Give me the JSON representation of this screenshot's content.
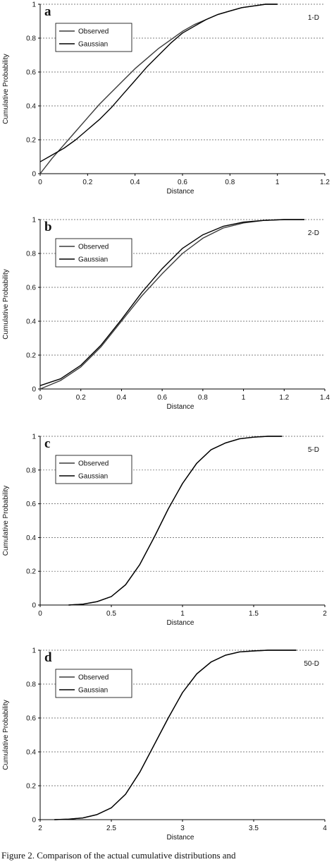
{
  "caption": "Figure 2.  Comparison of the actual cumulative distributions and",
  "chart_data": [
    {
      "type": "line",
      "panel": "a",
      "dimension_label": "1-D",
      "xlabel": "Distance",
      "ylabel": "Cumulative Probability",
      "xlim": [
        0,
        1.2
      ],
      "ylim": [
        0,
        1
      ],
      "xticks": [
        "0",
        "0.2",
        "0.4",
        "0.6",
        "0.8",
        "1",
        "1.2"
      ],
      "yticks": [
        "0",
        "0.2",
        "0.4",
        "0.6",
        "0.8",
        "1"
      ],
      "grid": "horizontal",
      "legend_position": "top-left",
      "series": [
        {
          "name": "Observed",
          "x": [
            0,
            0.05,
            0.1,
            0.15,
            0.2,
            0.25,
            0.3,
            0.35,
            0.4,
            0.45,
            0.5,
            0.55,
            0.6,
            0.65,
            0.7,
            0.75,
            0.8,
            0.85,
            0.9,
            0.95,
            1.0
          ],
          "y": [
            0,
            0.09,
            0.17,
            0.25,
            0.33,
            0.41,
            0.48,
            0.55,
            0.62,
            0.68,
            0.74,
            0.79,
            0.84,
            0.88,
            0.91,
            0.94,
            0.96,
            0.98,
            0.99,
            1.0,
            1.0
          ]
        },
        {
          "name": "Gaussian",
          "x": [
            0,
            0.05,
            0.1,
            0.15,
            0.2,
            0.25,
            0.3,
            0.35,
            0.4,
            0.45,
            0.5,
            0.55,
            0.6,
            0.65,
            0.7,
            0.75,
            0.8,
            0.85,
            0.9,
            0.95,
            1.0
          ],
          "y": [
            0.07,
            0.11,
            0.15,
            0.2,
            0.26,
            0.32,
            0.39,
            0.47,
            0.55,
            0.63,
            0.7,
            0.77,
            0.83,
            0.87,
            0.91,
            0.94,
            0.96,
            0.98,
            0.99,
            1.0,
            1.0
          ]
        }
      ]
    },
    {
      "type": "line",
      "panel": "b",
      "dimension_label": "2-D",
      "xlabel": "Distance",
      "ylabel": "Cumulative Probability",
      "xlim": [
        0,
        1.4
      ],
      "ylim": [
        0,
        1
      ],
      "xticks": [
        "0",
        "0.2",
        "0.4",
        "0.6",
        "0.8",
        "1",
        "1.2",
        "1.4"
      ],
      "yticks": [
        "0",
        "0.2",
        "0.4",
        "0.6",
        "0.8",
        "1"
      ],
      "grid": "horizontal",
      "legend_position": "top-left",
      "series": [
        {
          "name": "Observed",
          "x": [
            0,
            0.1,
            0.2,
            0.3,
            0.4,
            0.5,
            0.6,
            0.7,
            0.8,
            0.9,
            1.0,
            1.1,
            1.2,
            1.3
          ],
          "y": [
            0,
            0.05,
            0.13,
            0.25,
            0.4,
            0.55,
            0.68,
            0.8,
            0.89,
            0.95,
            0.98,
            0.995,
            1.0,
            1.0
          ]
        },
        {
          "name": "Gaussian",
          "x": [
            0,
            0.1,
            0.2,
            0.3,
            0.4,
            0.5,
            0.6,
            0.7,
            0.8,
            0.9,
            1.0,
            1.1,
            1.2,
            1.3
          ],
          "y": [
            0.02,
            0.06,
            0.14,
            0.26,
            0.41,
            0.57,
            0.71,
            0.83,
            0.91,
            0.96,
            0.985,
            0.995,
            1.0,
            1.0
          ]
        }
      ]
    },
    {
      "type": "line",
      "panel": "c",
      "dimension_label": "5-D",
      "xlabel": "Distance",
      "ylabel": "Cumulative Probability",
      "xlim": [
        0,
        2
      ],
      "ylim": [
        0,
        1
      ],
      "xticks": [
        "0",
        "0.5",
        "1",
        "1.5",
        "2"
      ],
      "yticks": [
        "0",
        "0.2",
        "0.4",
        "0.6",
        "0.8",
        "1"
      ],
      "grid": "horizontal",
      "legend_position": "top-left",
      "series": [
        {
          "name": "Observed",
          "x": [
            0.2,
            0.3,
            0.4,
            0.5,
            0.6,
            0.7,
            0.8,
            0.9,
            1.0,
            1.1,
            1.2,
            1.3,
            1.4,
            1.5,
            1.6,
            1.7
          ],
          "y": [
            0,
            0.005,
            0.02,
            0.05,
            0.12,
            0.24,
            0.4,
            0.57,
            0.72,
            0.84,
            0.92,
            0.96,
            0.985,
            0.995,
            1.0,
            1.0
          ]
        },
        {
          "name": "Gaussian",
          "x": [
            0.2,
            0.3,
            0.4,
            0.5,
            0.6,
            0.7,
            0.8,
            0.9,
            1.0,
            1.1,
            1.2,
            1.3,
            1.4,
            1.5,
            1.6,
            1.7
          ],
          "y": [
            0,
            0.005,
            0.02,
            0.05,
            0.12,
            0.24,
            0.4,
            0.57,
            0.72,
            0.84,
            0.92,
            0.96,
            0.985,
            0.995,
            1.0,
            1.0
          ]
        }
      ]
    },
    {
      "type": "line",
      "panel": "d",
      "dimension_label": "50-D",
      "xlabel": "Distance",
      "ylabel": "Cumulative Probability",
      "xlim": [
        2,
        4
      ],
      "ylim": [
        0,
        1
      ],
      "xticks": [
        "2",
        "2.5",
        "3",
        "3.5",
        "4"
      ],
      "yticks": [
        "0",
        "0.2",
        "0.4",
        "0.6",
        "0.8",
        "1"
      ],
      "grid": "horizontal",
      "legend_position": "top-left",
      "series": [
        {
          "name": "Observed",
          "x": [
            2.1,
            2.2,
            2.3,
            2.4,
            2.5,
            2.6,
            2.7,
            2.8,
            2.9,
            3.0,
            3.1,
            3.2,
            3.3,
            3.4,
            3.5,
            3.6,
            3.7,
            3.8
          ],
          "y": [
            0,
            0.003,
            0.01,
            0.03,
            0.07,
            0.15,
            0.28,
            0.44,
            0.6,
            0.75,
            0.86,
            0.93,
            0.97,
            0.99,
            0.996,
            1.0,
            1.0,
            1.0
          ]
        },
        {
          "name": "Gaussian",
          "x": [
            2.1,
            2.2,
            2.3,
            2.4,
            2.5,
            2.6,
            2.7,
            2.8,
            2.9,
            3.0,
            3.1,
            3.2,
            3.3,
            3.4,
            3.5,
            3.6,
            3.7,
            3.8
          ],
          "y": [
            0,
            0.003,
            0.01,
            0.03,
            0.07,
            0.15,
            0.28,
            0.44,
            0.6,
            0.75,
            0.86,
            0.93,
            0.97,
            0.99,
            0.996,
            1.0,
            1.0,
            1.0
          ]
        }
      ]
    }
  ]
}
